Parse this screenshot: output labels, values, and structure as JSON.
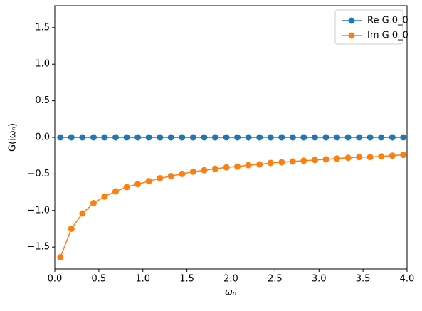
{
  "chart_data": {
    "type": "line",
    "x": [
      0.063,
      0.188,
      0.314,
      0.44,
      0.565,
      0.691,
      0.817,
      0.942,
      1.068,
      1.194,
      1.319,
      1.445,
      1.571,
      1.696,
      1.822,
      1.948,
      2.073,
      2.199,
      2.325,
      2.45,
      2.576,
      2.702,
      2.827,
      2.953,
      3.079,
      3.204,
      3.33,
      3.456,
      3.581,
      3.707,
      3.833,
      3.958
    ],
    "series": [
      {
        "name": "Re G 0_0",
        "color": "#1f77b4",
        "values": [
          0,
          0,
          0,
          0,
          0,
          0,
          0,
          0,
          0,
          0,
          0,
          0,
          0,
          0,
          0,
          0,
          0,
          0,
          0,
          0,
          0,
          0,
          0,
          0,
          0,
          0,
          0,
          0,
          0,
          0,
          0,
          0
        ]
      },
      {
        "name": "Im G 0_0",
        "color": "#ff7f0e",
        "values": [
          -1.64,
          -1.25,
          -1.04,
          -0.9,
          -0.81,
          -0.74,
          -0.68,
          -0.64,
          -0.6,
          -0.56,
          -0.53,
          -0.5,
          -0.47,
          -0.45,
          -0.43,
          -0.41,
          -0.4,
          -0.38,
          -0.37,
          -0.35,
          -0.34,
          -0.33,
          -0.32,
          -0.31,
          -0.3,
          -0.29,
          -0.28,
          -0.27,
          -0.27,
          -0.26,
          -0.25,
          -0.24
        ]
      }
    ],
    "xlabel": "ωₙ",
    "ylabel": "G(iωₙ)",
    "xlim": [
      0,
      4
    ],
    "ylim": [
      -1.8,
      1.8
    ],
    "xticks": [
      {
        "value": 0,
        "label": "0.0"
      },
      0.5,
      {
        "value": 1,
        "label": "1.0"
      },
      1.5,
      {
        "value": 2,
        "label": "2.0"
      },
      2.5,
      {
        "value": 3,
        "label": "3.0"
      },
      3.5,
      {
        "value": 4,
        "label": "4.0"
      }
    ],
    "yticks": [
      {
        "value": -1.5,
        "label": "−1.5"
      },
      {
        "value": -1,
        "label": "−1.0"
      },
      {
        "value": -0.5,
        "label": "−0.5"
      },
      {
        "value": 0,
        "label": "0.0"
      },
      0.5,
      {
        "value": 1,
        "label": "1.0"
      },
      1.5
    ],
    "grid": false,
    "legend": "upper-right"
  }
}
